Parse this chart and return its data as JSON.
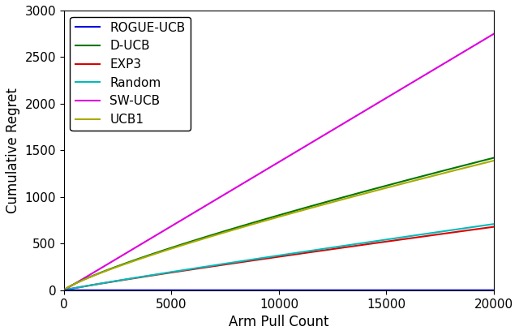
{
  "x_max": 20000,
  "x_ticks": [
    0,
    5000,
    10000,
    15000,
    20000
  ],
  "y_max": 3000,
  "y_ticks": [
    0,
    500,
    1000,
    1500,
    2000,
    2500,
    3000
  ],
  "xlabel": "Arm Pull Count",
  "ylabel": "Cumulative Regret",
  "series": [
    {
      "label": "ROGUE-UCB",
      "color": "#0000dd",
      "end_value": 0.0,
      "exponent": 1.0,
      "zorder": 6
    },
    {
      "label": "D-UCB",
      "color": "#007700",
      "end_value": 1420.0,
      "exponent": 0.82,
      "zorder": 4
    },
    {
      "label": "EXP3",
      "color": "#dd0000",
      "end_value": 680.0,
      "exponent": 0.92,
      "zorder": 3
    },
    {
      "label": "Random",
      "color": "#00bbbb",
      "end_value": 710.0,
      "exponent": 0.93,
      "zorder": 3
    },
    {
      "label": "SW-UCB",
      "color": "#dd00dd",
      "end_value": 2750.0,
      "exponent": 1.0,
      "zorder": 2
    },
    {
      "label": "UCB1",
      "color": "#aaaa00",
      "end_value": 1390.0,
      "exponent": 0.82,
      "zorder": 4
    }
  ],
  "legend_loc": "upper left",
  "legend_fontsize": 11,
  "axis_fontsize": 12,
  "tick_fontsize": 11,
  "figsize": [
    6.4,
    4.13
  ],
  "dpi": 100
}
